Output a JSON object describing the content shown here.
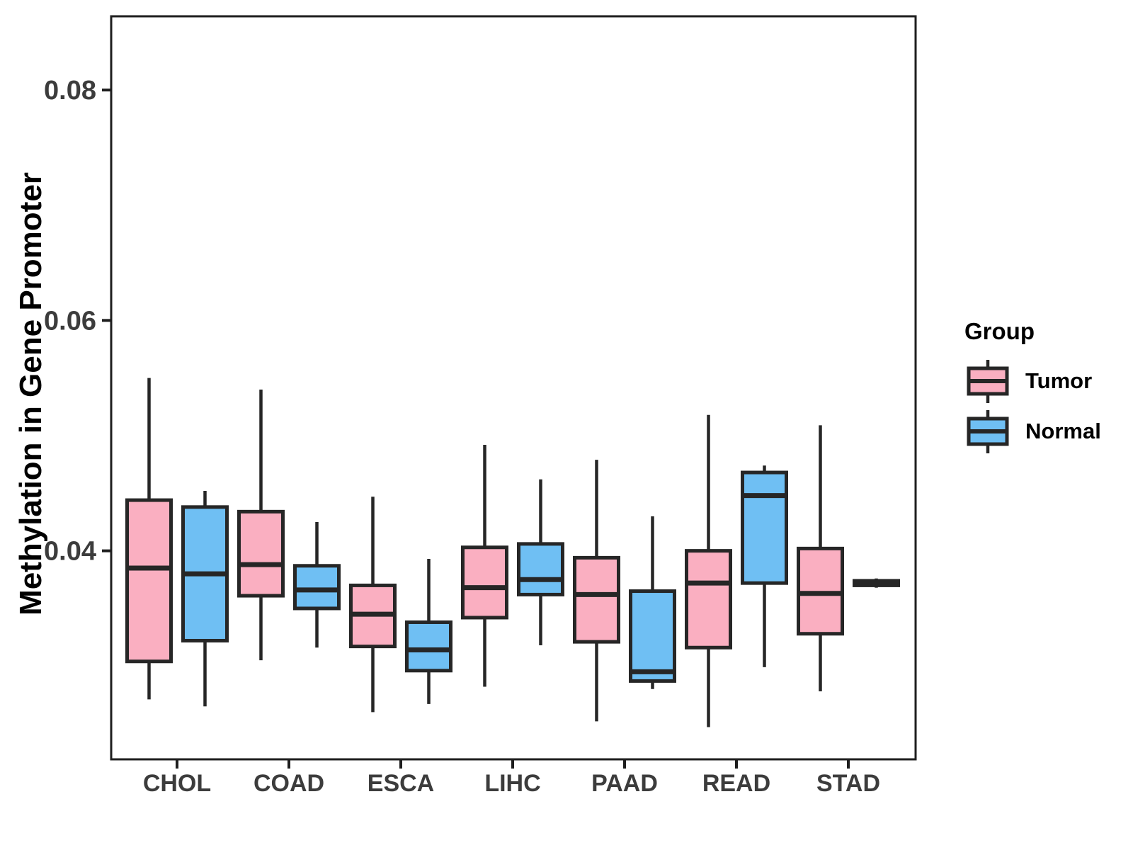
{
  "chart_data": {
    "type": "boxplot",
    "title": "",
    "xlabel": "",
    "ylabel": "Methylation in Gene Promoter",
    "categories": [
      "CHOL",
      "COAD",
      "ESCA",
      "LIHC",
      "PAAD",
      "READ",
      "STAD"
    ],
    "y_ticks": [
      0.04,
      0.06,
      0.08
    ],
    "y_tick_labels": [
      "0.04",
      "0.06",
      "0.08"
    ],
    "ylim": [
      0.0219,
      0.0864
    ],
    "grid": "off",
    "legend": {
      "title": "Group",
      "position": "right",
      "entries": [
        "Tumor",
        "Normal"
      ]
    },
    "colors": {
      "tumor_fill": "#FAAFC1",
      "normal_fill": "#6FBFF3",
      "box_border": "#262626",
      "axis": "#1E1E1E",
      "tick_label": "#3C3C3C",
      "background": "#FFFFFF"
    },
    "series": [
      {
        "name": "Tumor",
        "color": "#FAAFC1",
        "data": [
          {
            "category": "CHOL",
            "low": 0.0271,
            "q1": 0.0304,
            "median": 0.0385,
            "q3": 0.0444,
            "high": 0.055
          },
          {
            "category": "COAD",
            "low": 0.0305,
            "q1": 0.0361,
            "median": 0.0388,
            "q3": 0.0434,
            "high": 0.054
          },
          {
            "category": "ESCA",
            "low": 0.026,
            "q1": 0.0317,
            "median": 0.0345,
            "q3": 0.037,
            "high": 0.0447
          },
          {
            "category": "LIHC",
            "low": 0.0282,
            "q1": 0.0342,
            "median": 0.0368,
            "q3": 0.0403,
            "high": 0.0492
          },
          {
            "category": "PAAD",
            "low": 0.0252,
            "q1": 0.0321,
            "median": 0.0362,
            "q3": 0.0394,
            "high": 0.0479
          },
          {
            "category": "READ",
            "low": 0.0247,
            "q1": 0.0316,
            "median": 0.0372,
            "q3": 0.04,
            "high": 0.0518
          },
          {
            "category": "STAD",
            "low": 0.0278,
            "q1": 0.0328,
            "median": 0.0363,
            "q3": 0.0402,
            "high": 0.0509
          }
        ]
      },
      {
        "name": "Normal",
        "color": "#6FBFF3",
        "data": [
          {
            "category": "CHOL",
            "low": 0.0265,
            "q1": 0.0322,
            "median": 0.038,
            "q3": 0.0438,
            "high": 0.0452
          },
          {
            "category": "COAD",
            "low": 0.0316,
            "q1": 0.035,
            "median": 0.0366,
            "q3": 0.0387,
            "high": 0.0425
          },
          {
            "category": "ESCA",
            "low": 0.0267,
            "q1": 0.0296,
            "median": 0.0314,
            "q3": 0.0338,
            "high": 0.0393
          },
          {
            "category": "LIHC",
            "low": 0.0318,
            "q1": 0.0362,
            "median": 0.0375,
            "q3": 0.0406,
            "high": 0.0462
          },
          {
            "category": "PAAD",
            "low": 0.028,
            "q1": 0.0287,
            "median": 0.0295,
            "q3": 0.0365,
            "high": 0.043
          },
          {
            "category": "READ",
            "low": 0.0299,
            "q1": 0.0372,
            "median": 0.0448,
            "q3": 0.0468,
            "high": 0.0474
          },
          {
            "category": "STAD",
            "low": 0.0368,
            "q1": 0.037,
            "median": 0.0372,
            "q3": 0.0374,
            "high": 0.0376
          }
        ]
      }
    ]
  }
}
